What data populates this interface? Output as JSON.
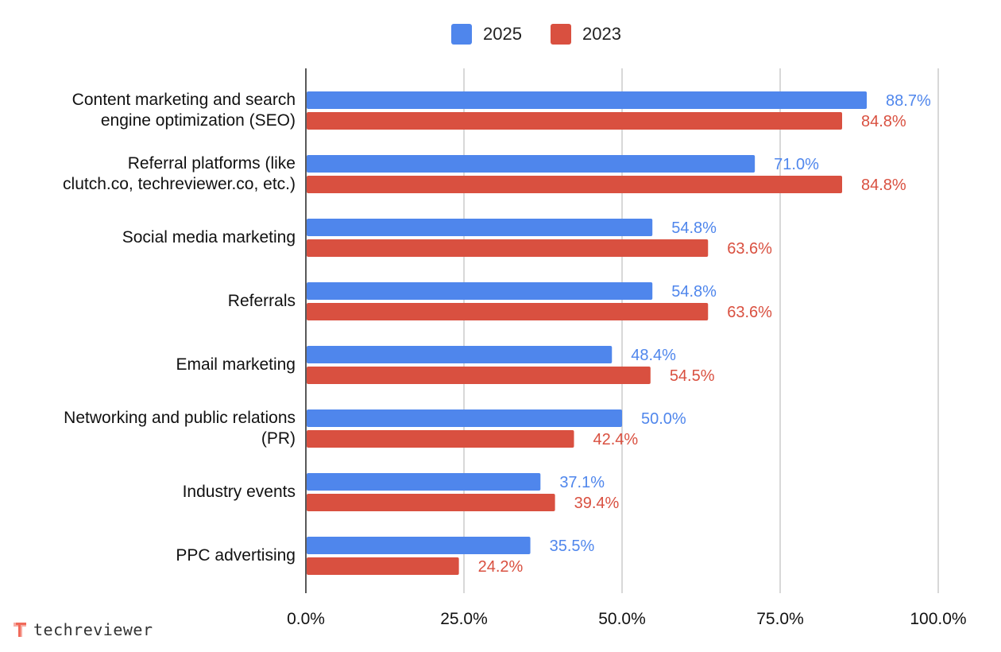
{
  "chart_data": {
    "type": "bar",
    "orientation": "horizontal",
    "categories": [
      "Content marketing and search engine optimization (SEO)",
      "Referral platforms (like clutch.co, techreviewer.co, etc.)",
      "Social media marketing",
      "Referrals",
      "Email marketing",
      "Networking and public relations (PR)",
      "Industry events",
      "PPC advertising"
    ],
    "category_lines": [
      [
        "Content marketing and search",
        "engine optimization (SEO)"
      ],
      [
        "Referral platforms (like",
        "clutch.co, techreviewer.co, etc.)"
      ],
      [
        "Social media marketing"
      ],
      [
        "Referrals"
      ],
      [
        "Email marketing"
      ],
      [
        "Networking and public relations",
        "(PR)"
      ],
      [
        "Industry events"
      ],
      [
        "PPC advertising"
      ]
    ],
    "series": [
      {
        "name": "2025",
        "color": "#4f86ec",
        "values": [
          88.7,
          71.0,
          54.8,
          54.8,
          48.4,
          50.0,
          37.1,
          35.5
        ],
        "labels": [
          "88.7%",
          "71.0%",
          "54.8%",
          "54.8%",
          "48.4%",
          "50.0%",
          "37.1%",
          "35.5%"
        ]
      },
      {
        "name": "2023",
        "color": "#d95040",
        "values": [
          84.8,
          84.8,
          63.6,
          63.6,
          54.5,
          42.4,
          39.4,
          24.2
        ],
        "labels": [
          "84.8%",
          "84.8%",
          "63.6%",
          "63.6%",
          "54.5%",
          "42.4%",
          "39.4%",
          "24.2%"
        ]
      }
    ],
    "xlim": [
      0,
      100
    ],
    "xticks": [
      "0.0%",
      "25.0%",
      "50.0%",
      "75.0%",
      "100.0%"
    ],
    "grid": true,
    "legend_position": "top"
  },
  "legend": [
    {
      "name": "2025",
      "color": "#4f86ec"
    },
    {
      "name": "2023",
      "color": "#d95040"
    }
  ],
  "logo": {
    "text": "techreviewer",
    "icon": "techreviewer-logo-icon",
    "color": "#f06a5a"
  }
}
